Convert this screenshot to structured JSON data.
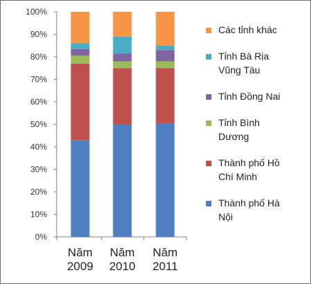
{
  "chart_data": {
    "type": "bar",
    "stacked": true,
    "percent": true,
    "categories": [
      "Năm 2009",
      "Năm 2010",
      "Năm 2011"
    ],
    "category_lines": [
      [
        "Năm",
        "2009"
      ],
      [
        "Năm",
        "2010"
      ],
      [
        "Năm",
        "2011"
      ]
    ],
    "y_ticks": [
      "0%",
      "10%",
      "20%",
      "30%",
      "40%",
      "50%",
      "60%",
      "70%",
      "80%",
      "90%",
      "100%"
    ],
    "ylim": [
      0,
      100
    ],
    "grid": false,
    "legend_position": "right",
    "series": [
      {
        "name": "Thành phố Hà Nội",
        "name_lines": [
          "Thành phố Hà",
          "Nội"
        ],
        "color": "#4F7FC0",
        "values": [
          43,
          50,
          50.5
        ]
      },
      {
        "name": "Thành phố Hồ Chí Minh",
        "name_lines": [
          "Thành phố Hồ",
          "Chí Minh"
        ],
        "color": "#C0504D",
        "values": [
          34,
          25,
          24.5
        ]
      },
      {
        "name": "Tỉnh Bình Dương",
        "name_lines": [
          "Tỉnh Bình",
          "Dương"
        ],
        "color": "#9BBB59",
        "values": [
          3.5,
          3,
          3
        ]
      },
      {
        "name": "Tỉnh Đồng Nai",
        "name_lines": [
          "Tỉnh Đồng Nai"
        ],
        "color": "#8064A2",
        "values": [
          3,
          3.5,
          5
        ]
      },
      {
        "name": "Tỉnh Bà Rịa Vũng Tàu",
        "name_lines": [
          "Tỉnh Bà Rịa",
          "Vũng Tàu"
        ],
        "color": "#4BACC6",
        "values": [
          2.5,
          7.5,
          2
        ]
      },
      {
        "name": "Các tỉnh khác",
        "name_lines": [
          "Các tỉnh khác"
        ],
        "color": "#F79646",
        "values": [
          14,
          11,
          15
        ]
      }
    ]
  }
}
